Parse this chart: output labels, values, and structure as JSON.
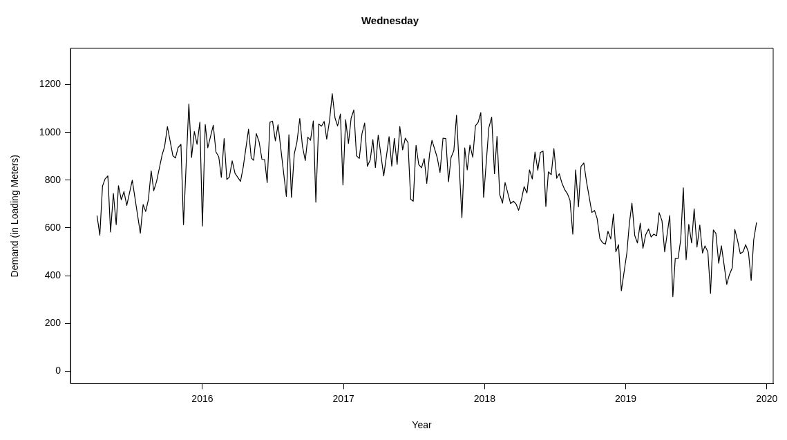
{
  "chart_data": {
    "type": "line",
    "title": "Wednesday",
    "xlabel": "Year",
    "ylabel": "Demand (in Loading Meters)",
    "xlim": [
      2015.065,
      2020.045
    ],
    "xticks": [
      2016,
      2017,
      2018,
      2019,
      2020
    ],
    "ylim": [
      -52,
      1352
    ],
    "yticks": [
      0,
      200,
      400,
      600,
      800,
      1000,
      1200
    ],
    "grid": false,
    "series": [
      {
        "color": "#000000",
        "x": [
          2015.253,
          2015.273,
          2015.292,
          2015.31,
          2015.33,
          2015.349,
          2015.369,
          2015.389,
          2015.405,
          2015.425,
          2015.444,
          2015.464,
          2015.503,
          2015.56,
          2015.58,
          2015.598,
          2015.617,
          2015.637,
          2015.655,
          2015.675,
          2015.714,
          2015.732,
          2015.752,
          2015.791,
          2015.809,
          2015.828,
          2015.848,
          2015.866,
          2015.904,
          2015.923,
          2015.943,
          2015.962,
          2015.982,
          2016.0,
          2016.02,
          2016.038,
          2016.077,
          2016.096,
          2016.116,
          2016.134,
          2016.154,
          2016.173,
          2016.191,
          2016.211,
          2016.231,
          2016.27,
          2016.289,
          2016.327,
          2016.346,
          2016.363,
          2016.382,
          2016.402,
          2016.422,
          2016.441,
          2016.459,
          2016.479,
          2016.497,
          2016.517,
          2016.536,
          2016.595,
          2016.613,
          2016.631,
          2016.651,
          2016.67,
          2016.69,
          2016.709,
          2016.729,
          2016.747,
          2016.766,
          2016.786,
          2016.804,
          2016.824,
          2016.844,
          2016.863,
          2016.881,
          2016.901,
          2016.92,
          2016.94,
          2016.958,
          2016.978,
          2016.996,
          2017.015,
          2017.035,
          2017.054,
          2017.073,
          2017.092,
          2017.112,
          2017.131,
          2017.15,
          2017.169,
          2017.189,
          2017.208,
          2017.226,
          2017.246,
          2017.285,
          2017.323,
          2017.342,
          2017.36,
          2017.38,
          2017.399,
          2017.419,
          2017.438,
          2017.457,
          2017.476,
          2017.494,
          2017.514,
          2017.533,
          2017.553,
          2017.572,
          2017.59,
          2017.61,
          2017.627,
          2017.664,
          2017.684,
          2017.705,
          2017.725,
          2017.744,
          2017.762,
          2017.782,
          2017.801,
          2017.839,
          2017.859,
          2017.877,
          2017.896,
          2017.916,
          2017.935,
          2017.954,
          2017.973,
          2017.993,
          2018.03,
          2018.05,
          2018.07,
          2018.088,
          2018.107,
          2018.127,
          2018.145,
          2018.184,
          2018.204,
          2018.223,
          2018.241,
          2018.261,
          2018.28,
          2018.3,
          2018.318,
          2018.338,
          2018.357,
          2018.377,
          2018.395,
          2018.414,
          2018.434,
          2018.452,
          2018.472,
          2018.491,
          2018.511,
          2018.529,
          2018.548,
          2018.568,
          2018.587,
          2018.605,
          2018.625,
          2018.645,
          2018.665,
          2018.683,
          2018.703,
          2018.722,
          2018.76,
          2018.779,
          2018.797,
          2018.817,
          2018.836,
          2018.856,
          2018.874,
          2018.894,
          2018.913,
          2018.93,
          2018.949,
          2018.969,
          2019.008,
          2019.026,
          2019.044,
          2019.064,
          2019.083,
          2019.103,
          2019.122,
          2019.142,
          2019.162,
          2019.18,
          2019.199,
          2019.219,
          2019.237,
          2019.257,
          2019.276,
          2019.312,
          2019.334,
          2019.351,
          2019.371,
          2019.39,
          2019.408,
          2019.428,
          2019.447,
          2019.467,
          2019.485,
          2019.505,
          2019.525,
          2019.544,
          2019.562,
          2019.582,
          2019.601,
          2019.621,
          2019.639,
          2019.659,
          2019.678,
          2019.696,
          2019.716,
          2019.735,
          2019.755,
          2019.773,
          2019.793,
          2019.812,
          2019.832,
          2019.85,
          2019.87,
          2019.889,
          2019.907,
          2019.927
        ],
        "values": [
          652,
          570,
          775,
          805,
          818,
          583,
          744,
          614,
          777,
          718,
          752,
          694,
          800,
          578,
          698,
          669,
          718,
          839,
          756,
          794,
          905,
          940,
          1024,
          902,
          893,
          937,
          950,
          614,
          1119,
          895,
          1004,
          950,
          1043,
          608,
          1033,
          936,
          1030,
          918,
          898,
          812,
          974,
          803,
          813,
          881,
          829,
          795,
          854,
          1013,
          893,
          883,
          995,
          960,
          887,
          886,
          790,
          1043,
          1047,
          965,
          1032,
          732,
          990,
          728,
          910,
          960,
          1058,
          942,
          882,
          980,
          967,
          1048,
          708,
          1035,
          1026,
          1046,
          972,
          1050,
          1162,
          1060,
          1027,
          1077,
          780,
          1053,
          954,
          1060,
          1094,
          902,
          891,
          995,
          1039,
          858,
          884,
          970,
          853,
          989,
          818,
          982,
          859,
          975,
          866,
          1025,
          927,
          976,
          957,
          720,
          712,
          946,
          866,
          852,
          890,
          787,
          910,
          967,
          895,
          832,
          976,
          974,
          793,
          895,
          924,
          1072,
          643,
          935,
          843,
          947,
          896,
          1028,
          1042,
          1083,
          728,
          1020,
          1064,
          827,
          983,
          740,
          704,
          790,
          702,
          712,
          700,
          674,
          718,
          773,
          746,
          843,
          805,
          918,
          842,
          916,
          922,
          690,
          835,
          823,
          932,
          808,
          827,
          788,
          760,
          743,
          716,
          574,
          843,
          688,
          858,
          872,
          794,
          665,
          673,
          640,
          555,
          538,
          532,
          586,
          554,
          658,
          500,
          530,
          337,
          495,
          620,
          704,
          568,
          537,
          620,
          515,
          572,
          596,
          562,
          574,
          567,
          664,
          630,
          500,
          652,
          312,
          472,
          472,
          552,
          768,
          467,
          615,
          537,
          680,
          520,
          612,
          495,
          525,
          500,
          326,
          592,
          577,
          452,
          525,
          450,
          364,
          405,
          433,
          594,
          547,
          492,
          500,
          530,
          498,
          380,
          550,
          623
        ]
      }
    ]
  }
}
